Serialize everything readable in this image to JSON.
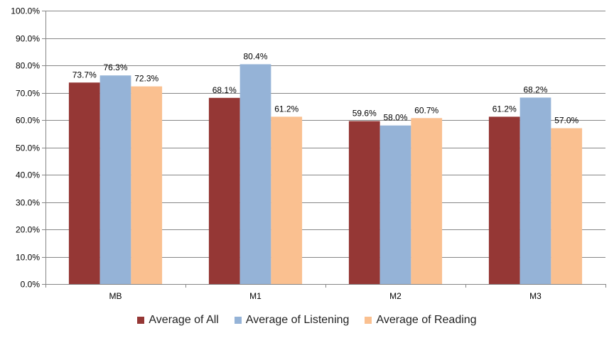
{
  "chart_data": {
    "type": "bar",
    "title": "",
    "xlabel": "",
    "ylabel": "",
    "categories": [
      "MB",
      "M1",
      "M2",
      "M3"
    ],
    "ylim": [
      0,
      100
    ],
    "ytick_step": 10,
    "y_format": "percent_1dp",
    "grid": true,
    "legend_position": "bottom",
    "series": [
      {
        "name": "Average of All",
        "color": "#953735",
        "values": [
          73.7,
          68.1,
          59.6,
          61.2
        ],
        "labels": [
          "73.7%",
          "68.1%",
          "59.6%",
          "61.2%"
        ]
      },
      {
        "name": "Average of Listening",
        "color": "#95B3D7",
        "values": [
          76.3,
          80.4,
          58.0,
          68.2
        ],
        "labels": [
          "76.3%",
          "80.4%",
          "58.0%",
          "68.2%"
        ]
      },
      {
        "name": "Average of Reading",
        "color": "#FAC090",
        "values": [
          72.3,
          61.2,
          60.7,
          57.0
        ],
        "labels": [
          "72.3%",
          "61.2%",
          "60.7%",
          "57.0%"
        ]
      }
    ]
  }
}
